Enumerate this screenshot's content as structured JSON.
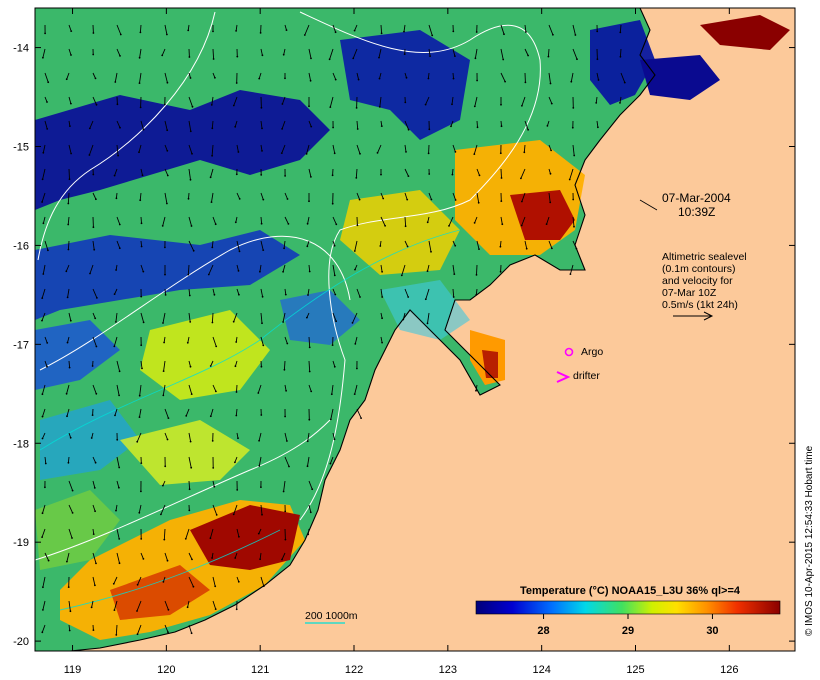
{
  "map": {
    "lon_range": [
      118.6,
      126.7
    ],
    "lat_range": [
      -20.1,
      -13.6
    ],
    "lon_ticks": [
      "119",
      "120",
      "121",
      "122",
      "123",
      "124",
      "125",
      "126"
    ],
    "lat_ticks": [
      "-14",
      "-15",
      "-16",
      "-17",
      "-18",
      "-19",
      "-20"
    ]
  },
  "date_label": {
    "line1": "07-Mar-2004",
    "line2": "10:39Z"
  },
  "altimetry_note": {
    "line1": "Altimetric sealevel",
    "line2": "(0.1m contours)",
    "line3": "and velocity for",
    "line4": "07-Mar 10Z",
    "line5": "0.5m/s (1kt 24h)"
  },
  "legend": {
    "argo_label": "Argo",
    "drifter_label": "drifter",
    "argo_color": "#ff00ff",
    "drifter_color": "#ff00ff"
  },
  "scale_note": {
    "label": "200  1000m"
  },
  "colorbar": {
    "title": "Temperature (°C) NOAA15_L3U 36% ql>=4",
    "ticks": [
      "28",
      "29",
      "30"
    ],
    "range": [
      27.2,
      30.8
    ]
  },
  "credit": "© IMOS 10-Apr-2015 12:54:33 Hobart time",
  "colors": {
    "land": "#fcc99a",
    "coast": "#000000",
    "contour": "#ffffff",
    "isobath": "#00e0d8"
  }
}
